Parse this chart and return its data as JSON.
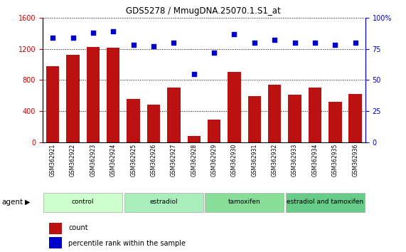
{
  "title": "GDS5278 / MmugDNA.25070.1.S1_at",
  "samples": [
    "GSM362921",
    "GSM362922",
    "GSM362923",
    "GSM362924",
    "GSM362925",
    "GSM362926",
    "GSM362927",
    "GSM362928",
    "GSM362929",
    "GSM362930",
    "GSM362931",
    "GSM362932",
    "GSM362933",
    "GSM362934",
    "GSM362935",
    "GSM362936"
  ],
  "counts": [
    975,
    1120,
    1220,
    1210,
    560,
    480,
    700,
    80,
    290,
    900,
    590,
    740,
    610,
    700,
    520,
    620
  ],
  "percentiles": [
    84,
    84,
    88,
    89,
    78,
    77,
    80,
    55,
    72,
    87,
    80,
    82,
    80,
    80,
    78,
    80
  ],
  "bar_color": "#bb1111",
  "dot_color": "#0000cc",
  "ylim_left": [
    0,
    1600
  ],
  "ylim_right": [
    0,
    100
  ],
  "yticks_left": [
    0,
    400,
    800,
    1200,
    1600
  ],
  "yticks_right": [
    0,
    25,
    50,
    75,
    100
  ],
  "groups": [
    {
      "label": "control",
      "start": 0,
      "end": 4,
      "color": "#ccffcc"
    },
    {
      "label": "estradiol",
      "start": 4,
      "end": 8,
      "color": "#aaeebb"
    },
    {
      "label": "tamoxifen",
      "start": 8,
      "end": 12,
      "color": "#88dd99"
    },
    {
      "label": "estradiol and tamoxifen",
      "start": 12,
      "end": 16,
      "color": "#66cc88"
    }
  ],
  "agent_label": "agent",
  "legend_count_label": "count",
  "legend_pct_label": "percentile rank within the sample",
  "background_color": "#ffffff",
  "tick_label_color_left": "#cc0000",
  "tick_label_color_right": "#0000cc"
}
